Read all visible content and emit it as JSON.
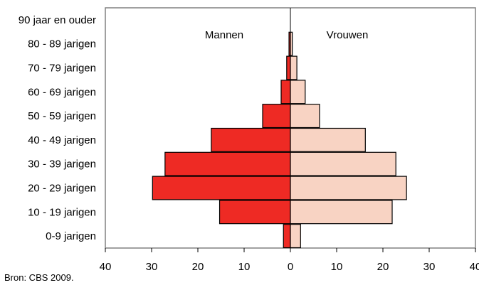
{
  "chart_data": {
    "type": "bar",
    "orientation": "horizontal",
    "layout": "population-pyramid",
    "categories": [
      "0-9 jarigen",
      "10 - 19 jarigen",
      "20 - 29 jarigen",
      "30 - 39 jarigen",
      "40 - 49 jarigen",
      "50 - 59 jarigen",
      "60 - 69 jarigen",
      "70 - 79 jarigen",
      "80 - 89 jarigen",
      "90 jaar en ouder"
    ],
    "series": [
      {
        "name": "Mannen",
        "side": "left",
        "color": "#ee2a24",
        "values": [
          1.5,
          15.3,
          29.8,
          27.1,
          17.1,
          6.0,
          2.0,
          0.8,
          0.3,
          0.0
        ]
      },
      {
        "name": "Vrouwen",
        "side": "right",
        "color": "#f8d3c3",
        "values": [
          2.2,
          22.0,
          25.1,
          22.8,
          16.2,
          6.3,
          3.2,
          1.4,
          0.4,
          0.0
        ]
      }
    ],
    "xlim": [
      -40,
      40
    ],
    "x_ticks": [
      "40",
      "30",
      "20",
      "10",
      "0",
      "10",
      "20",
      "30",
      "40"
    ],
    "grid": false,
    "legend_position": "top-center"
  },
  "source_note": "Bron: CBS 2009."
}
